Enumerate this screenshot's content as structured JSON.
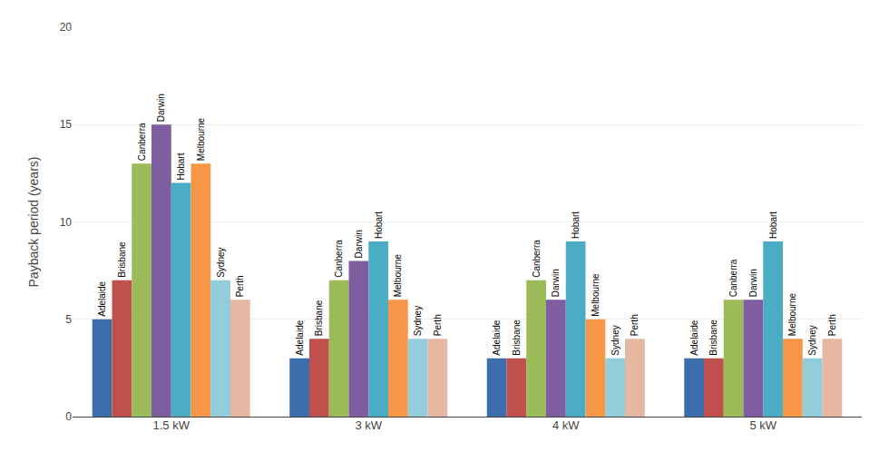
{
  "chart_data": {
    "type": "bar",
    "categories": [
      "1.5 kW",
      "3 kW",
      "4 kW",
      "5 kW"
    ],
    "series": [
      {
        "name": "Adelaide",
        "color": "#3A6DAA",
        "values": [
          5.0,
          3.0,
          3.0,
          3.0
        ]
      },
      {
        "name": "Brisbane",
        "color": "#C0504D",
        "values": [
          7.0,
          4.0,
          3.0,
          3.0
        ]
      },
      {
        "name": "Canberra",
        "color": "#9BBB59",
        "values": [
          13.0,
          7.0,
          7.0,
          6.0
        ]
      },
      {
        "name": "Darwin",
        "color": "#7E5EA0",
        "values": [
          15.0,
          8.0,
          6.0,
          6.0
        ]
      },
      {
        "name": "Hobart",
        "color": "#4BACC6",
        "values": [
          12.0,
          9.0,
          9.0,
          9.0
        ]
      },
      {
        "name": "Melbourne",
        "color": "#F79646",
        "values": [
          13.0,
          6.0,
          5.0,
          4.0
        ]
      },
      {
        "name": "Sydney",
        "color": "#92CDDC",
        "values": [
          7.0,
          4.0,
          3.0,
          3.0
        ]
      },
      {
        "name": "Perth",
        "color": "#E6B8A2",
        "values": [
          6.0,
          4.0,
          4.0,
          4.0
        ]
      }
    ],
    "ylabel": "Payback period (years)",
    "ylim": [
      0,
      20
    ],
    "yticks": [
      0,
      5,
      10,
      15,
      20
    ],
    "grid": true
  }
}
